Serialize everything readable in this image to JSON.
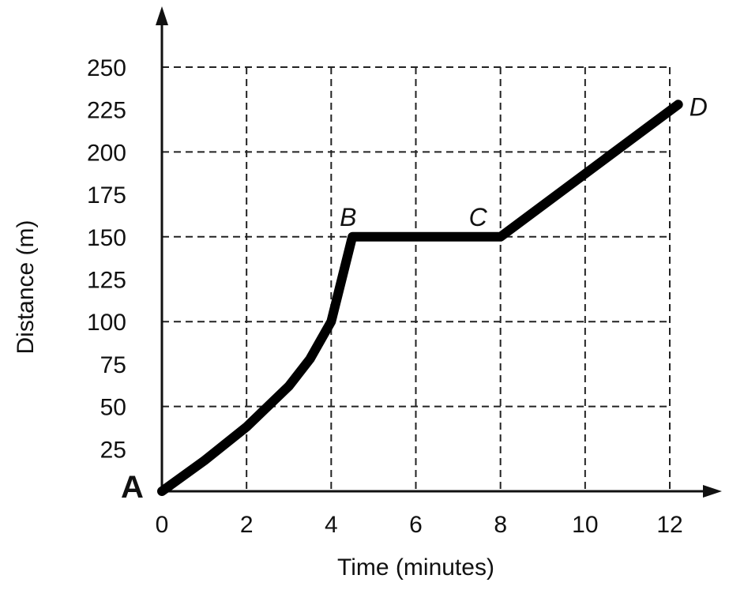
{
  "chart_data": {
    "type": "line",
    "xlabel": "Time (minutes)",
    "ylabel": "Distance (m)",
    "xlim": [
      0,
      12
    ],
    "ylim": [
      0,
      250
    ],
    "x_ticks": [
      "0",
      "2",
      "4",
      "6",
      "8",
      "10",
      "12"
    ],
    "y_ticks": [
      "25",
      "50",
      "75",
      "100",
      "125",
      "150",
      "175",
      "200",
      "225",
      "250"
    ],
    "grid": true,
    "series": [
      {
        "x": [
          0,
          1,
          2,
          3,
          3.5,
          4,
          4.5,
          8,
          12.2
        ],
        "y": [
          0,
          18,
          38,
          62,
          78,
          100,
          150,
          150,
          228
        ]
      }
    ],
    "annotations": [
      {
        "label": "A",
        "x": 0,
        "y": 0
      },
      {
        "label": "B",
        "x": 4.5,
        "y": 150
      },
      {
        "label": "C",
        "x": 8,
        "y": 150
      },
      {
        "label": "D",
        "x": 12.2,
        "y": 228
      }
    ]
  }
}
